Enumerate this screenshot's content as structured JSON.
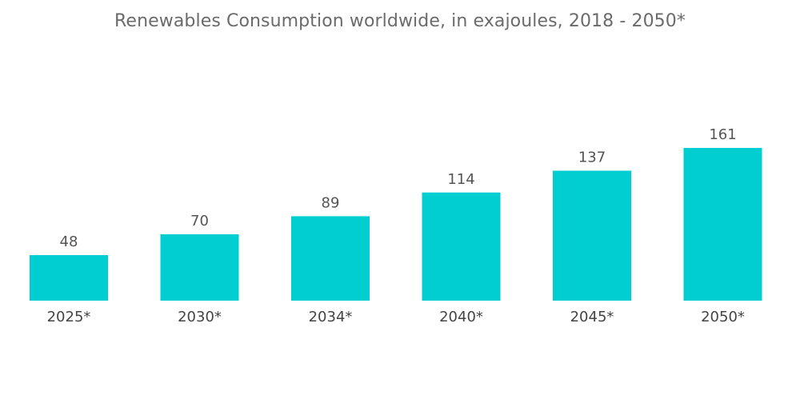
{
  "chart_data": {
    "type": "bar",
    "title": "Renewables Consumption worldwide, in exajoules, 2018 - 2050*",
    "categories": [
      "2025*",
      "2030*",
      "2034*",
      "2040*",
      "2045*",
      "2050*"
    ],
    "values": [
      48,
      70,
      89,
      114,
      137,
      161
    ],
    "data_labels": [
      "48",
      "70",
      "89",
      "114",
      "137",
      "161"
    ],
    "xlabel": "",
    "ylabel": "",
    "ylim": [
      0,
      161
    ],
    "grid": false,
    "legend": "none",
    "bar_color": "#00CED1"
  }
}
